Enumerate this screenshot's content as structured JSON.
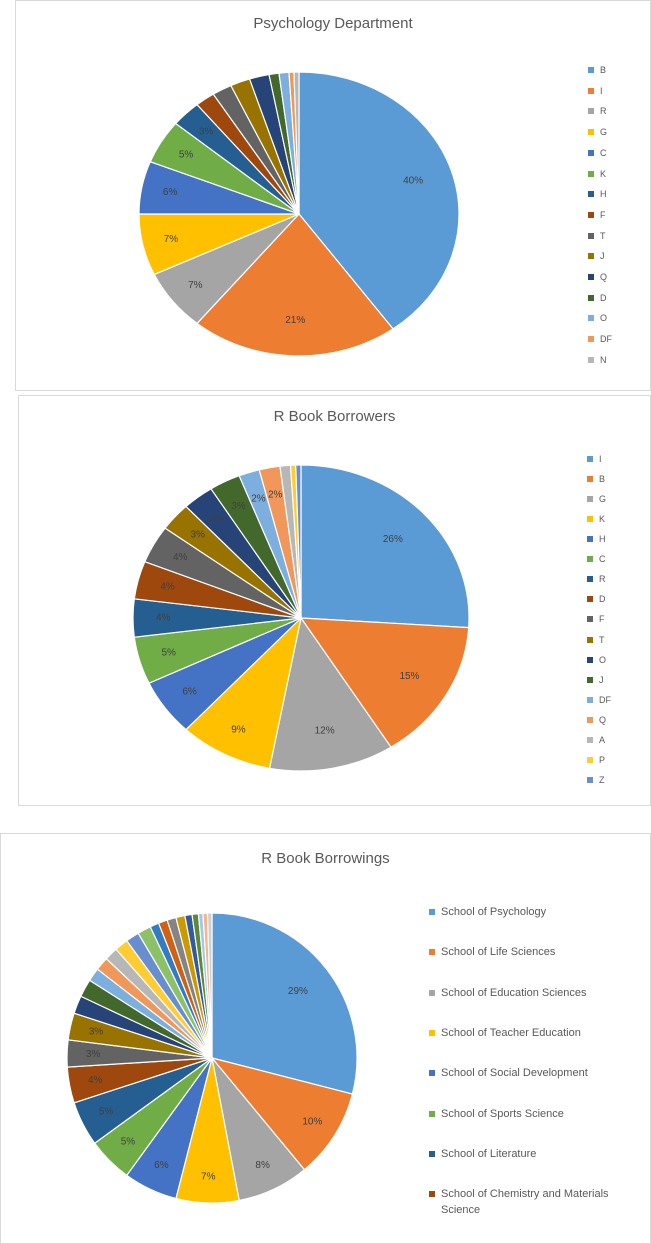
{
  "chart_data": [
    {
      "type": "pie",
      "title": "Psychology Department",
      "categories": [
        "B",
        "I",
        "R",
        "G",
        "C",
        "K",
        "H",
        "F",
        "T",
        "J",
        "Q",
        "D",
        "O",
        "DF",
        "N"
      ],
      "values": [
        40,
        21,
        7,
        7,
        6,
        5,
        3,
        2,
        2,
        2,
        2,
        1,
        1,
        0.5,
        0.5
      ],
      "value_labels": [
        "40%",
        "21%",
        "7%",
        "7%",
        "6%",
        "5%",
        "3%",
        null,
        null,
        null,
        null,
        null,
        null,
        null,
        null
      ],
      "colors": [
        "#5b9bd5",
        "#ed7d31",
        "#a5a5a5",
        "#ffc000",
        "#4472c4",
        "#70ad47",
        "#255e91",
        "#9e480e",
        "#636363",
        "#997300",
        "#264478",
        "#43682b",
        "#7cafdd",
        "#f1975a",
        "#b7b7b7"
      ],
      "legend": "right"
    },
    {
      "type": "pie",
      "title": "R Book Borrowers",
      "categories": [
        "I",
        "B",
        "G",
        "K",
        "H",
        "C",
        "R",
        "D",
        "F",
        "T",
        "O",
        "J",
        "DF",
        "Q",
        "A",
        "P",
        "Z"
      ],
      "values": [
        26,
        15,
        12,
        9,
        6,
        5,
        4,
        4,
        4,
        3,
        3,
        3,
        2,
        2,
        1,
        0.5,
        0.5
      ],
      "value_labels": [
        "26%",
        "15%",
        "12%",
        "9%",
        "6%",
        "5%",
        "4%",
        "4%",
        "4%",
        "3%",
        "3%",
        "3%",
        "2%",
        "2%",
        null,
        null,
        null
      ],
      "colors": [
        "#5b9bd5",
        "#ed7d31",
        "#a5a5a5",
        "#ffc000",
        "#4472c4",
        "#70ad47",
        "#255e91",
        "#9e480e",
        "#636363",
        "#997300",
        "#264478",
        "#43682b",
        "#7cafdd",
        "#f1975a",
        "#b7b7b7",
        "#ffcd33",
        "#698ed0"
      ],
      "legend": "right"
    },
    {
      "type": "pie",
      "title": "R Book Borrowings",
      "categories": [
        "School of Psychology",
        "School of Life Sciences",
        "School of Education Sciences",
        "School of Teacher Education",
        "School of Social Development",
        "School of Sports Science",
        "School of Literature",
        "School of Chemistry and Materials Science",
        null,
        null,
        null,
        null,
        null,
        null,
        null,
        null,
        null,
        null,
        null,
        null,
        null,
        null,
        null,
        null,
        null,
        null,
        null
      ],
      "values": [
        29,
        10,
        8,
        7,
        6,
        5,
        5,
        4,
        3,
        3,
        2,
        2,
        1.5,
        1.5,
        1.5,
        1.5,
        1.5,
        1.5,
        1,
        1,
        1,
        1,
        0.8,
        0.7,
        0.5,
        0.5,
        0.5
      ],
      "value_labels": [
        "29%",
        "10%",
        "8%",
        "7%",
        "6%",
        "5%",
        "5%",
        "4%",
        "3%",
        "3%",
        null,
        null,
        null,
        null,
        null,
        null,
        null,
        null,
        null,
        null,
        null,
        null,
        null,
        null,
        null,
        null,
        null
      ],
      "colors": [
        "#5b9bd5",
        "#ed7d31",
        "#a5a5a5",
        "#ffc000",
        "#4472c4",
        "#70ad47",
        "#255e91",
        "#9e480e",
        "#636363",
        "#997300",
        "#264478",
        "#43682b",
        "#7cafdd",
        "#f1975a",
        "#b7b7b7",
        "#ffcd33",
        "#698ed0",
        "#8cc168",
        "#327dc2",
        "#d26012",
        "#848484",
        "#cc9a00",
        "#335aa1",
        "#5a8a39",
        "#a3c7e8",
        "#f6b68b",
        "#cfcfcf"
      ],
      "legend": "right"
    }
  ]
}
